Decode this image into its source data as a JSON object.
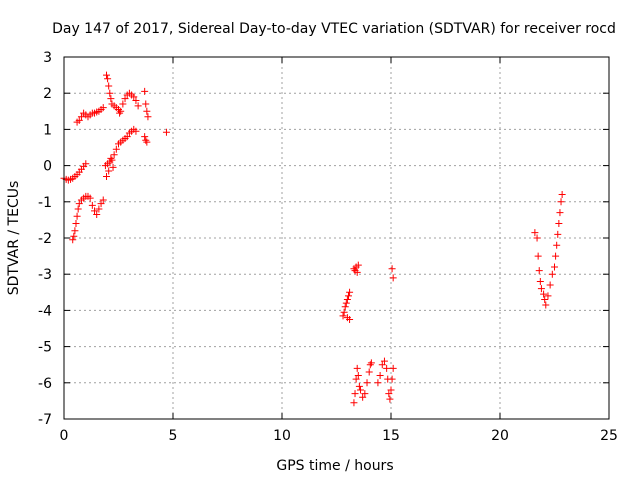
{
  "chart_data": {
    "type": "scatter",
    "title": "Day 147 of 2017, Sidereal Day-to-day VTEC variation (SDTVAR) for receiver rocd",
    "xlabel": "GPS time / hours",
    "ylabel": "SDTVAR / TECUs",
    "xlim": [
      0,
      25
    ],
    "ylim": [
      -7,
      3
    ],
    "xticks": [
      0,
      5,
      10,
      15,
      20,
      25
    ],
    "yticks": [
      -7,
      -6,
      -5,
      -4,
      -3,
      -2,
      -1,
      0,
      1,
      2,
      3
    ],
    "grid": true,
    "marker": "+",
    "colors": {
      "points": "#ff0000",
      "grid": "#a0a0a0",
      "axis": "#000000"
    },
    "series": [
      {
        "name": "SDTVAR",
        "points": [
          [
            0.0,
            -0.35
          ],
          [
            0.1,
            -0.38
          ],
          [
            0.2,
            -0.4
          ],
          [
            0.3,
            -0.38
          ],
          [
            0.4,
            -0.35
          ],
          [
            0.5,
            -0.3
          ],
          [
            0.6,
            -0.25
          ],
          [
            0.7,
            -0.18
          ],
          [
            0.8,
            -0.1
          ],
          [
            0.9,
            -0.02
          ],
          [
            1.0,
            0.05
          ],
          [
            0.4,
            -2.05
          ],
          [
            0.45,
            -1.95
          ],
          [
            0.5,
            -1.8
          ],
          [
            0.55,
            -1.6
          ],
          [
            0.6,
            -1.4
          ],
          [
            0.65,
            -1.2
          ],
          [
            0.7,
            -1.05
          ],
          [
            0.8,
            -0.95
          ],
          [
            0.9,
            -0.9
          ],
          [
            1.0,
            -0.85
          ],
          [
            1.1,
            -0.85
          ],
          [
            1.2,
            -0.9
          ],
          [
            1.3,
            -1.1
          ],
          [
            1.4,
            -1.25
          ],
          [
            1.5,
            -1.35
          ],
          [
            1.6,
            -1.2
          ],
          [
            1.7,
            -1.05
          ],
          [
            1.8,
            -0.95
          ],
          [
            0.6,
            1.2
          ],
          [
            0.7,
            1.25
          ],
          [
            0.8,
            1.35
          ],
          [
            0.9,
            1.45
          ],
          [
            1.0,
            1.4
          ],
          [
            1.1,
            1.35
          ],
          [
            1.2,
            1.4
          ],
          [
            1.3,
            1.45
          ],
          [
            1.4,
            1.45
          ],
          [
            1.5,
            1.48
          ],
          [
            1.6,
            1.5
          ],
          [
            1.7,
            1.55
          ],
          [
            1.8,
            1.6
          ],
          [
            1.9,
            0.0
          ],
          [
            2.0,
            0.05
          ],
          [
            2.1,
            0.1
          ],
          [
            2.2,
            0.15
          ],
          [
            2.3,
            0.3
          ],
          [
            2.4,
            0.45
          ],
          [
            2.5,
            0.6
          ],
          [
            2.6,
            0.65
          ],
          [
            2.7,
            0.7
          ],
          [
            2.8,
            0.75
          ],
          [
            2.9,
            0.8
          ],
          [
            3.0,
            0.9
          ],
          [
            3.1,
            0.95
          ],
          [
            3.2,
            1.0
          ],
          [
            3.3,
            0.95
          ],
          [
            1.95,
            -0.3
          ],
          [
            2.05,
            -0.15
          ],
          [
            2.15,
            0.2
          ],
          [
            2.25,
            -0.05
          ],
          [
            1.95,
            2.5
          ],
          [
            2.0,
            2.4
          ],
          [
            2.05,
            2.2
          ],
          [
            2.1,
            2.0
          ],
          [
            2.15,
            1.85
          ],
          [
            2.2,
            1.7
          ],
          [
            2.3,
            1.65
          ],
          [
            2.4,
            1.6
          ],
          [
            2.5,
            1.55
          ],
          [
            2.55,
            1.45
          ],
          [
            2.6,
            1.5
          ],
          [
            2.7,
            1.7
          ],
          [
            2.8,
            1.85
          ],
          [
            2.9,
            1.95
          ],
          [
            3.0,
            2.0
          ],
          [
            3.1,
            1.95
          ],
          [
            3.2,
            1.9
          ],
          [
            3.3,
            1.8
          ],
          [
            3.4,
            1.65
          ],
          [
            3.7,
            2.05
          ],
          [
            3.75,
            1.7
          ],
          [
            3.8,
            1.5
          ],
          [
            3.85,
            1.35
          ],
          [
            3.7,
            0.8
          ],
          [
            3.75,
            0.7
          ],
          [
            3.8,
            0.65
          ],
          [
            4.7,
            0.92
          ],
          [
            12.8,
            -4.15
          ],
          [
            12.85,
            -4.05
          ],
          [
            12.9,
            -3.9
          ],
          [
            12.95,
            -3.8
          ],
          [
            13.0,
            -3.7
          ],
          [
            13.05,
            -3.6
          ],
          [
            13.1,
            -3.5
          ],
          [
            13.0,
            -4.2
          ],
          [
            13.1,
            -4.25
          ],
          [
            13.3,
            -2.85
          ],
          [
            13.4,
            -2.8
          ],
          [
            13.5,
            -2.75
          ],
          [
            13.35,
            -2.9
          ],
          [
            13.45,
            -2.95
          ],
          [
            15.05,
            -2.85
          ],
          [
            15.1,
            -3.1
          ],
          [
            13.3,
            -6.55
          ],
          [
            13.35,
            -6.3
          ],
          [
            13.4,
            -5.9
          ],
          [
            13.45,
            -5.6
          ],
          [
            13.5,
            -5.8
          ],
          [
            13.55,
            -6.1
          ],
          [
            13.6,
            -6.2
          ],
          [
            13.7,
            -6.4
          ],
          [
            13.8,
            -6.3
          ],
          [
            13.9,
            -6.0
          ],
          [
            14.0,
            -5.7
          ],
          [
            14.05,
            -5.5
          ],
          [
            14.1,
            -5.45
          ],
          [
            14.4,
            -6.0
          ],
          [
            14.5,
            -5.8
          ],
          [
            14.6,
            -5.5
          ],
          [
            14.7,
            -5.4
          ],
          [
            14.8,
            -5.6
          ],
          [
            14.85,
            -5.9
          ],
          [
            14.9,
            -6.3
          ],
          [
            14.95,
            -6.45
          ],
          [
            15.0,
            -6.2
          ],
          [
            15.05,
            -5.9
          ],
          [
            15.1,
            -5.6
          ],
          [
            21.6,
            -1.85
          ],
          [
            21.7,
            -2.0
          ],
          [
            21.75,
            -2.5
          ],
          [
            21.8,
            -2.9
          ],
          [
            21.85,
            -3.2
          ],
          [
            21.9,
            -3.4
          ],
          [
            22.0,
            -3.55
          ],
          [
            22.05,
            -3.7
          ],
          [
            22.1,
            -3.85
          ],
          [
            22.2,
            -3.6
          ],
          [
            22.3,
            -3.3
          ],
          [
            22.4,
            -3.0
          ],
          [
            22.5,
            -2.8
          ],
          [
            22.55,
            -2.5
          ],
          [
            22.6,
            -2.2
          ],
          [
            22.65,
            -1.9
          ],
          [
            22.7,
            -1.6
          ],
          [
            22.75,
            -1.3
          ],
          [
            22.8,
            -1.0
          ],
          [
            22.85,
            -0.8
          ]
        ]
      }
    ]
  }
}
